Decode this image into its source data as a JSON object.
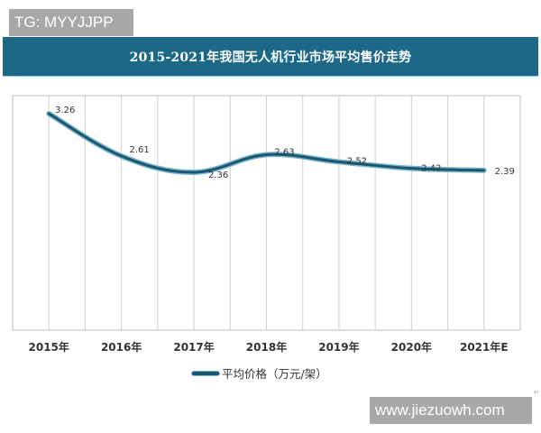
{
  "badges": {
    "top_left": "TG: MYYJJPP",
    "bottom_right": "www.jiezuowh.com"
  },
  "chart": {
    "title": "2015-2021年我国无人机行业市场平均售价走势",
    "legend_label": "平均价格（万元/架）"
  },
  "colors": {
    "title_bar": "#1d6787",
    "line": "#1a5870",
    "line_glow": "#7fb5cc",
    "grid": "#d0d0d0"
  },
  "chart_data": {
    "type": "line",
    "title": "2015-2021年我国无人机行业市场平均售价走势",
    "xlabel": "",
    "ylabel": "",
    "categories": [
      "2015年",
      "2016年",
      "2017年",
      "2018年",
      "2019年",
      "2020年",
      "2021年E"
    ],
    "series": [
      {
        "name": "平均价格（万元/架）",
        "values": [
          3.26,
          2.61,
          2.36,
          2.63,
          2.52,
          2.42,
          2.39
        ]
      }
    ],
    "data_labels": [
      "3.26",
      "2.61",
      "2.36",
      "2.63",
      "2.52",
      "2.42",
      "2.39"
    ],
    "smooth": true,
    "grid": {
      "vertical": true,
      "horizontal": false
    },
    "y_axis_visible": false,
    "legend_position": "bottom"
  }
}
